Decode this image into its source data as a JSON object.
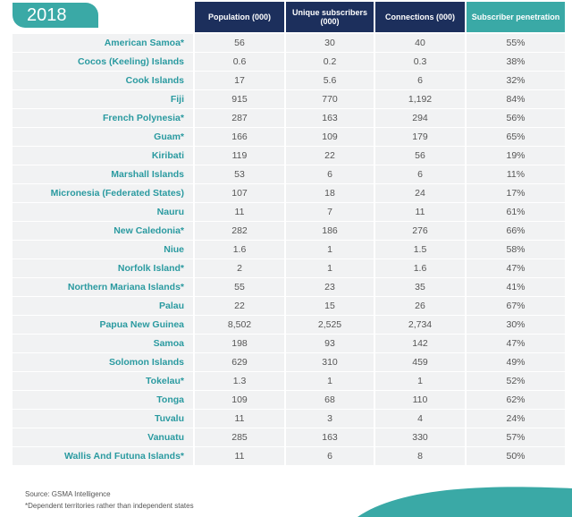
{
  "header": {
    "year": "2018",
    "columns": [
      "Population (000)",
      "Unique subscribers (000)",
      "Connections (000)",
      "Subscriber penetration"
    ]
  },
  "table": {
    "rows": [
      [
        "American Samoa*",
        "56",
        "30",
        "40",
        "55%"
      ],
      [
        "Cocos (Keeling) Islands",
        "0.6",
        "0.2",
        "0.3",
        "38%"
      ],
      [
        "Cook Islands",
        "17",
        "5.6",
        "6",
        "32%"
      ],
      [
        "Fiji",
        "915",
        "770",
        "1,192",
        "84%"
      ],
      [
        "French Polynesia*",
        "287",
        "163",
        "294",
        "56%"
      ],
      [
        "Guam*",
        "166",
        "109",
        "179",
        "65%"
      ],
      [
        "Kiribati",
        "119",
        "22",
        "56",
        "19%"
      ],
      [
        "Marshall Islands",
        "53",
        "6",
        "6",
        "11%"
      ],
      [
        "Micronesia (Federated States)",
        "107",
        "18",
        "24",
        "17%"
      ],
      [
        "Nauru",
        "11",
        "7",
        "11",
        "61%"
      ],
      [
        "New Caledonia*",
        "282",
        "186",
        "276",
        "66%"
      ],
      [
        "Niue",
        "1.6",
        "1",
        "1.5",
        "58%"
      ],
      [
        "Norfolk Island*",
        "2",
        "1",
        "1.6",
        "47%"
      ],
      [
        "Northern Mariana Islands*",
        "55",
        "23",
        "35",
        "41%"
      ],
      [
        "Palau",
        "22",
        "15",
        "26",
        "67%"
      ],
      [
        "Papua New Guinea",
        "8,502",
        "2,525",
        "2,734",
        "30%"
      ],
      [
        "Samoa",
        "198",
        "93",
        "142",
        "47%"
      ],
      [
        "Solomon Islands",
        "629",
        "310",
        "459",
        "49%"
      ],
      [
        "Tokelau*",
        "1.3",
        "1",
        "1",
        "52%"
      ],
      [
        "Tonga",
        "109",
        "68",
        "110",
        "62%"
      ],
      [
        "Tuvalu",
        "11",
        "3",
        "4",
        "24%"
      ],
      [
        "Vanuatu",
        "285",
        "163",
        "330",
        "57%"
      ],
      [
        "Wallis And Futuna Islands*",
        "11",
        "6",
        "8",
        "50%"
      ]
    ]
  },
  "footer": {
    "source": "Source: GSMA Intelligence",
    "note": "*Dependent territories rather than independent states"
  }
}
